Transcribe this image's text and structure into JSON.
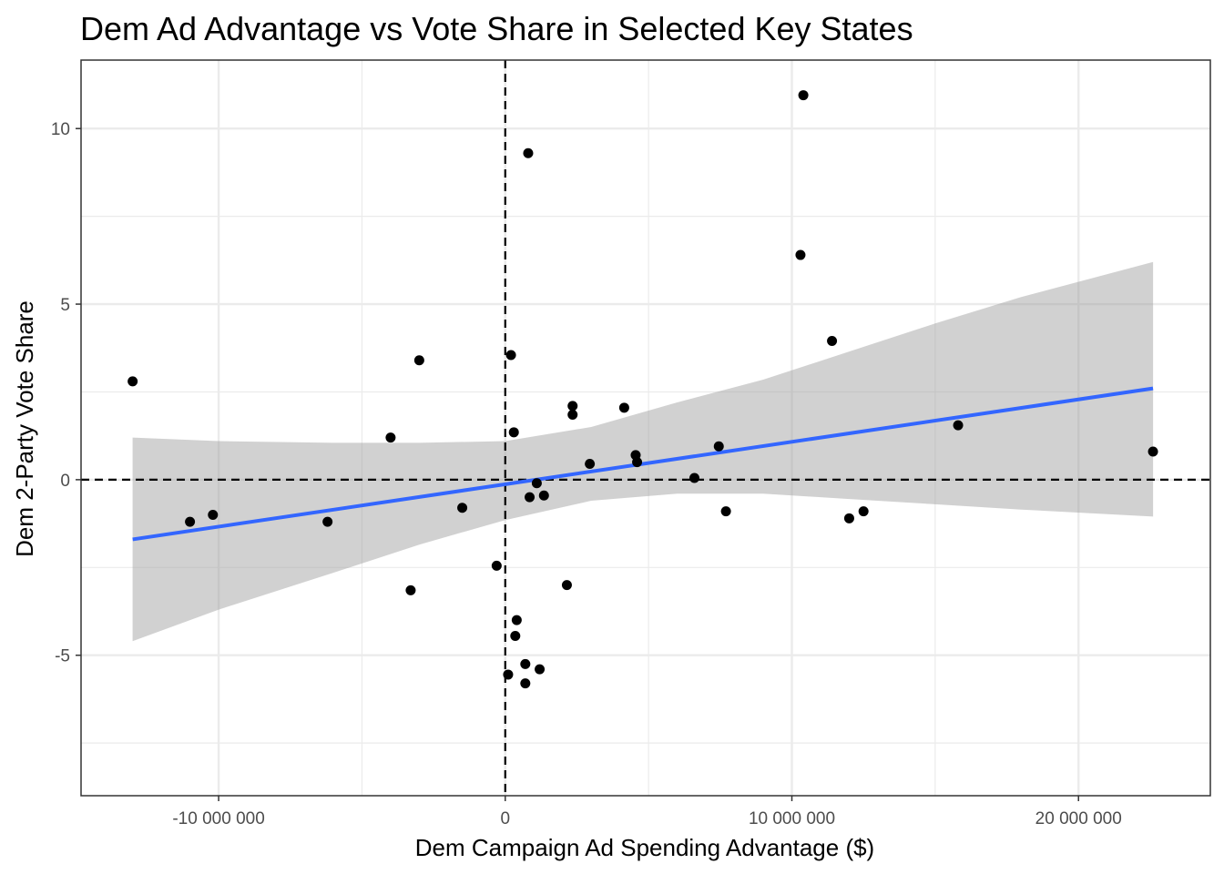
{
  "chart_data": {
    "type": "scatter",
    "title": "Dem Ad Advantage vs Vote Share in Selected Key States",
    "xlabel": "Dem Campaign Ad Spending Advantage ($)",
    "ylabel": "Dem 2-Party Vote Share",
    "xlim": [
      -14800000,
      24600000
    ],
    "ylim": [
      -9.0,
      11.95
    ],
    "x_ticks": [
      {
        "value": -10000000,
        "label": "-10 000 000"
      },
      {
        "value": 0,
        "label": "0"
      },
      {
        "value": 10000000,
        "label": "10 000 000"
      },
      {
        "value": 20000000,
        "label": "20 000 000"
      }
    ],
    "x_minor_ticks": [
      -5000000,
      5000000,
      15000000
    ],
    "y_ticks": [
      {
        "value": -5,
        "label": "-5"
      },
      {
        "value": 0,
        "label": "0"
      },
      {
        "value": 5,
        "label": "5"
      },
      {
        "value": 10,
        "label": "10"
      }
    ],
    "y_minor_ticks": [
      -7.5,
      -2.5,
      2.5,
      7.5
    ],
    "grid": true,
    "reference_lines": {
      "x": 0,
      "y": 0,
      "style": "dashed"
    },
    "points": [
      {
        "x": -13000000,
        "y": 2.8
      },
      {
        "x": -11000000,
        "y": -1.2
      },
      {
        "x": -10200000,
        "y": -1.0
      },
      {
        "x": -6200000,
        "y": -1.2
      },
      {
        "x": -4000000,
        "y": 1.2
      },
      {
        "x": -3300000,
        "y": -3.15
      },
      {
        "x": -3000000,
        "y": 3.4
      },
      {
        "x": -1500000,
        "y": -0.8
      },
      {
        "x": -300000,
        "y": -2.45
      },
      {
        "x": 100000,
        "y": -5.55
      },
      {
        "x": 200000,
        "y": 3.55
      },
      {
        "x": 300000,
        "y": 1.35
      },
      {
        "x": 350000,
        "y": -4.45
      },
      {
        "x": 400000,
        "y": -4.0
      },
      {
        "x": 700000,
        "y": -5.8
      },
      {
        "x": 700000,
        "y": -5.25
      },
      {
        "x": 800000,
        "y": 9.3
      },
      {
        "x": 850000,
        "y": -0.5
      },
      {
        "x": 1100000,
        "y": -0.1
      },
      {
        "x": 1200000,
        "y": -5.4
      },
      {
        "x": 1350000,
        "y": -0.45
      },
      {
        "x": 2150000,
        "y": -3.0
      },
      {
        "x": 2350000,
        "y": 2.1
      },
      {
        "x": 2350000,
        "y": 1.85
      },
      {
        "x": 2950000,
        "y": 0.45
      },
      {
        "x": 4150000,
        "y": 2.05
      },
      {
        "x": 4550000,
        "y": 0.7
      },
      {
        "x": 4600000,
        "y": 0.5
      },
      {
        "x": 6600000,
        "y": 0.05
      },
      {
        "x": 7450000,
        "y": 0.95
      },
      {
        "x": 7700000,
        "y": -0.9
      },
      {
        "x": 10300000,
        "y": 6.4
      },
      {
        "x": 10400000,
        "y": 10.95
      },
      {
        "x": 11400000,
        "y": 3.95
      },
      {
        "x": 12000000,
        "y": -1.1
      },
      {
        "x": 12500000,
        "y": -0.9
      },
      {
        "x": 15800000,
        "y": 1.55
      },
      {
        "x": 22600000,
        "y": 0.8
      }
    ],
    "trend_line": {
      "method": "linear",
      "color": "#3366FF",
      "x_range": [
        -13000000,
        22600000
      ],
      "y_range": [
        -1.7,
        2.6
      ],
      "confidence_band": {
        "color": "#999999",
        "opacity": 0.45,
        "x": [
          -13000000,
          -10000000,
          -6000000,
          -3000000,
          0,
          3000000,
          6000000,
          9000000,
          12000000,
          15000000,
          18000000,
          22600000
        ],
        "lower": [
          -4.6,
          -3.7,
          -2.65,
          -1.85,
          -1.15,
          -0.6,
          -0.4,
          -0.4,
          -0.55,
          -0.7,
          -0.85,
          -1.05
        ],
        "upper": [
          1.2,
          1.1,
          1.05,
          1.05,
          1.1,
          1.5,
          2.2,
          2.85,
          3.65,
          4.45,
          5.2,
          6.2
        ]
      }
    },
    "point_color": "#000000",
    "panel_border_color": "#333333",
    "grid_color": "#ebebeb"
  }
}
